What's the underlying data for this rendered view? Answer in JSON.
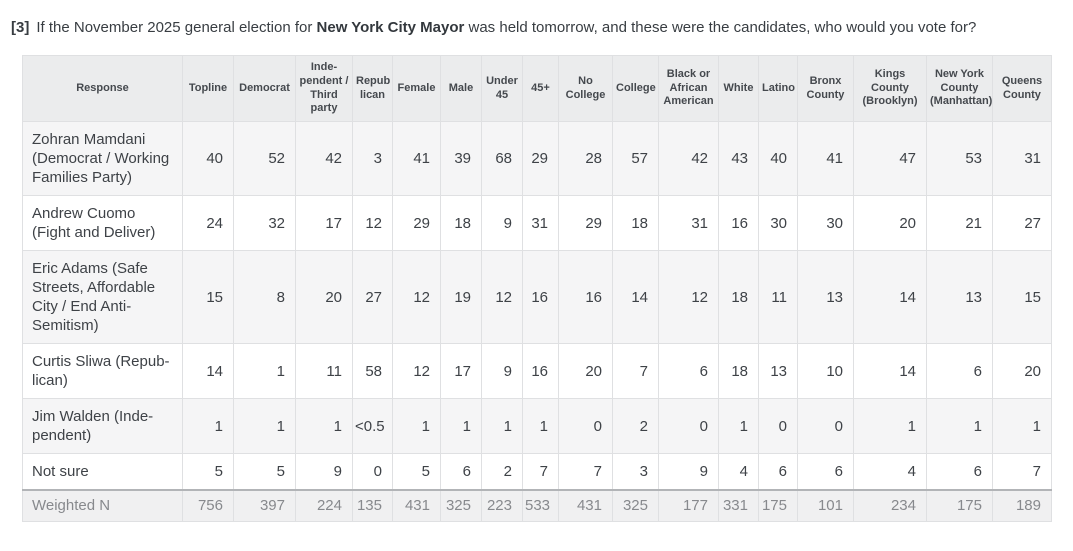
{
  "question": {
    "number": "[3]",
    "text1": "If the November 2025 general election for ",
    "bold": "New York City Mayor",
    "text2": " was held tomorrow, and these were the candidates, who would you vote for?"
  },
  "table": {
    "response_header": "Response",
    "columns": [
      "Topline",
      "Democrat",
      "Inde-pendent / Third party",
      "Repub lican",
      "Female",
      "Male",
      "Under 45",
      "45+",
      "No College",
      "College",
      "Black or African American",
      "White",
      "Latino",
      "Bronx County",
      "Kings County (Brooklyn)",
      "New York County (Manhattan)",
      "Queens County"
    ],
    "rows": [
      {
        "label": "Zohran Mamdani (Democrat / Working Families Party)",
        "values": [
          "40",
          "52",
          "42",
          "3",
          "41",
          "39",
          "68",
          "29",
          "28",
          "57",
          "42",
          "43",
          "40",
          "41",
          "47",
          "53",
          "31"
        ]
      },
      {
        "label": "Andrew Cuomo (Fight and Deliver)",
        "values": [
          "24",
          "32",
          "17",
          "12",
          "29",
          "18",
          "9",
          "31",
          "29",
          "18",
          "31",
          "16",
          "30",
          "30",
          "20",
          "21",
          "27"
        ]
      },
      {
        "label": "Eric Adams (Safe Streets, Affordable City / End Anti-Semitism)",
        "values": [
          "15",
          "8",
          "20",
          "27",
          "12",
          "19",
          "12",
          "16",
          "16",
          "14",
          "12",
          "18",
          "11",
          "13",
          "14",
          "13",
          "15"
        ]
      },
      {
        "label": "Curtis Sliwa (Repub-lican)",
        "values": [
          "14",
          "1",
          "11",
          "58",
          "12",
          "17",
          "9",
          "16",
          "20",
          "7",
          "6",
          "18",
          "13",
          "10",
          "14",
          "6",
          "20"
        ]
      },
      {
        "label": "Jim Walden (Inde-pendent)",
        "values": [
          "1",
          "1",
          "1",
          "<0.5",
          "1",
          "1",
          "1",
          "1",
          "0",
          "2",
          "0",
          "1",
          "0",
          "0",
          "1",
          "1",
          "1"
        ]
      },
      {
        "label": "Not sure",
        "values": [
          "5",
          "5",
          "9",
          "0",
          "5",
          "6",
          "2",
          "7",
          "7",
          "3",
          "9",
          "4",
          "6",
          "6",
          "4",
          "6",
          "7"
        ]
      }
    ],
    "footer": {
      "label": "Weighted N",
      "values": [
        "756",
        "397",
        "224",
        "135",
        "431",
        "325",
        "223",
        "533",
        "431",
        "325",
        "177",
        "331",
        "175",
        "101",
        "234",
        "175",
        "189"
      ]
    }
  }
}
